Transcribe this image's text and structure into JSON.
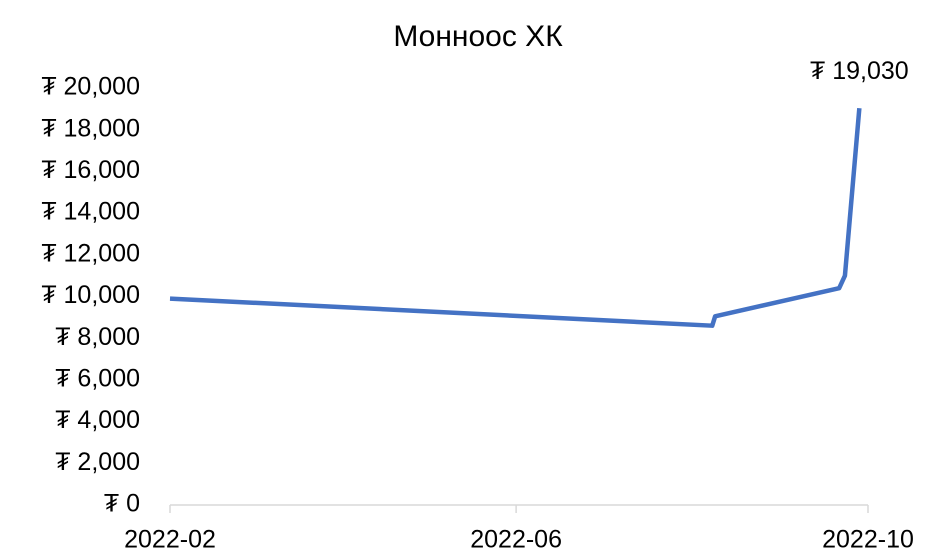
{
  "chart_data": {
    "type": "line",
    "title": "Монноос ХК",
    "x": [
      "2022-02-01",
      "2022-08-08",
      "2022-08-09",
      "2022-09-21",
      "2022-09-23",
      "2022-09-28"
    ],
    "series": [
      {
        "name": "Монноос ХК",
        "color": "#4472c4",
        "values": [
          9900,
          8600,
          9050,
          10400,
          11000,
          19030
        ],
        "value_labels": [
          null,
          null,
          null,
          null,
          null,
          "₮ 19,030"
        ]
      }
    ],
    "xlim": [
      "2022-02-01",
      "2022-10-01"
    ],
    "xticks": [
      {
        "value": "2022-02-01",
        "label": "2022-02"
      },
      {
        "value": "2022-06-01",
        "label": "2022-06"
      },
      {
        "value": "2022-10-01",
        "label": "2022-10"
      }
    ],
    "ylim": [
      0,
      20000
    ],
    "yticks": [
      {
        "value": 0,
        "label": "₮ 0"
      },
      {
        "value": 2000,
        "label": "₮ 2,000"
      },
      {
        "value": 4000,
        "label": "₮ 4,000"
      },
      {
        "value": 6000,
        "label": "₮ 6,000"
      },
      {
        "value": 8000,
        "label": "₮ 8,000"
      },
      {
        "value": 10000,
        "label": "₮ 10,000"
      },
      {
        "value": 12000,
        "label": "₮ 12,000"
      },
      {
        "value": 14000,
        "label": "₮ 14,000"
      },
      {
        "value": 16000,
        "label": "₮ 16,000"
      },
      {
        "value": 18000,
        "label": "₮ 18,000"
      },
      {
        "value": 20000,
        "label": "₮ 20,000"
      }
    ],
    "grid": false
  }
}
